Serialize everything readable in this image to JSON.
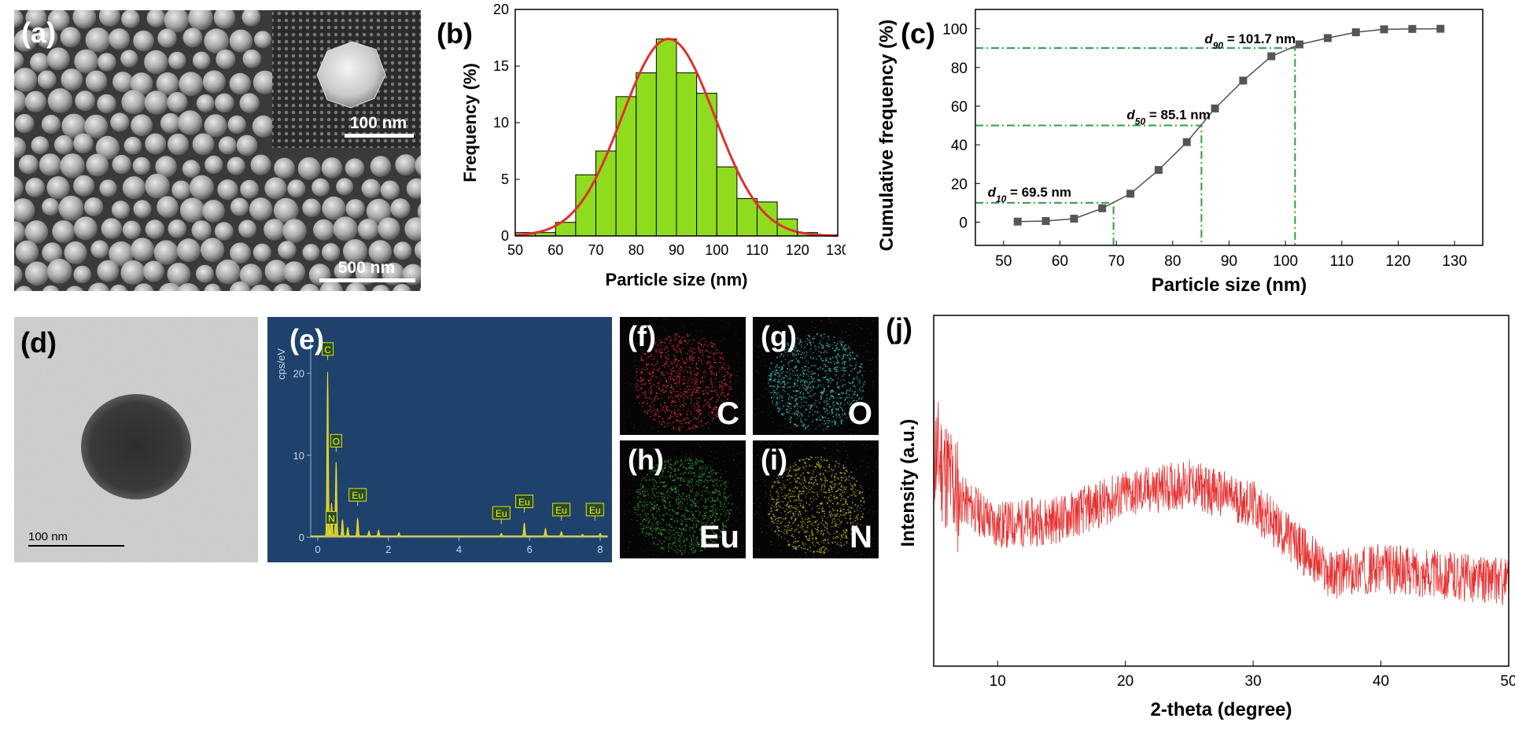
{
  "panels": {
    "a": {
      "label": "(a)",
      "inset_scale": "100 nm",
      "scale": "500 nm"
    },
    "b": {
      "label": "(b)"
    },
    "c": {
      "label": "(c)"
    },
    "d": {
      "label": "(d)",
      "scale": "100 nm"
    },
    "e": {
      "label": "(e)",
      "ylabel": "cps/eV"
    },
    "f": {
      "label": "(f)",
      "element": "C",
      "color": "#ff3030"
    },
    "g": {
      "label": "(g)",
      "element": "O",
      "color": "#3fd8d8"
    },
    "h": {
      "label": "(h)",
      "element": "Eu",
      "color": "#30c030"
    },
    "i": {
      "label": "(i)",
      "element": "N",
      "color": "#d8c820"
    },
    "j": {
      "label": "(j)"
    }
  },
  "chart_data": [
    {
      "id": "b",
      "type": "bar",
      "title": "",
      "xlabel": "Particle size (nm)",
      "ylabel": "Frequency (%)",
      "xlim": [
        50,
        130
      ],
      "ylim": [
        0,
        20
      ],
      "xticks": [
        50,
        60,
        70,
        80,
        90,
        100,
        110,
        120,
        130
      ],
      "yticks": [
        0,
        5,
        10,
        15,
        20
      ],
      "bin_width": 5,
      "bin_starts": [
        50,
        55,
        60,
        65,
        70,
        75,
        80,
        85,
        90,
        95,
        100,
        105,
        110,
        115,
        120,
        125
      ],
      "values": [
        0.3,
        0.3,
        1.2,
        5.4,
        7.5,
        12.3,
        14.4,
        17.4,
        14.4,
        12.6,
        6.1,
        3.3,
        3.0,
        1.5,
        0.3,
        0.1
      ],
      "fit": {
        "type": "gaussian",
        "mean": 88,
        "sigma": 11.5,
        "peak": 17.4,
        "color": "#e03030"
      },
      "bar_color": "#8fdc1e"
    },
    {
      "id": "c",
      "type": "line",
      "title": "",
      "xlabel": "Particle size (nm)",
      "ylabel": "Cumulative frequency (%)",
      "xlim": [
        45,
        135
      ],
      "ylim": [
        -12,
        110
      ],
      "xticks": [
        50,
        60,
        70,
        80,
        90,
        100,
        110,
        120,
        130
      ],
      "yticks": [
        0,
        20,
        40,
        60,
        80,
        100
      ],
      "x": [
        52.5,
        57.5,
        62.5,
        67.5,
        72.5,
        77.5,
        82.5,
        87.5,
        92.5,
        97.5,
        102.5,
        107.5,
        112.5,
        117.5,
        122.5,
        127.5
      ],
      "y": [
        0.3,
        0.6,
        1.8,
        7.2,
        14.7,
        27.0,
        41.4,
        58.8,
        73.2,
        85.8,
        91.9,
        95.2,
        98.2,
        99.7,
        99.9,
        100
      ],
      "markers": [
        {
          "name": "d10",
          "sub": "10",
          "value": 69.5,
          "percent": 10,
          "label": " = 69.5 nm"
        },
        {
          "name": "d50",
          "sub": "50",
          "value": 85.1,
          "percent": 50,
          "label": " = 85.1 nm"
        },
        {
          "name": "d90",
          "sub": "90",
          "value": 101.7,
          "percent": 90,
          "label": " = 101.7 nm"
        }
      ],
      "line_color": "#505050",
      "guide_color": "#2aa040"
    },
    {
      "id": "e",
      "type": "area",
      "title": "",
      "xlabel": "",
      "ylabel": "cps/eV",
      "xlim": [
        -0.2,
        8.2
      ],
      "ylim": [
        0,
        24
      ],
      "xticks": [
        0,
        2,
        4,
        6,
        8
      ],
      "yticks": [
        0,
        10,
        20
      ],
      "peaks": [
        {
          "x": 0.28,
          "y": 20.0
        },
        {
          "x": 0.39,
          "y": 4.0
        },
        {
          "x": 0.52,
          "y": 9.0
        },
        {
          "x": 0.7,
          "y": 2.0
        },
        {
          "x": 0.85,
          "y": 1.0
        },
        {
          "x": 1.13,
          "y": 2.2
        },
        {
          "x": 1.45,
          "y": 0.6
        },
        {
          "x": 1.72,
          "y": 0.7
        },
        {
          "x": 2.3,
          "y": 0.4
        },
        {
          "x": 5.2,
          "y": 0.3
        },
        {
          "x": 5.85,
          "y": 1.6
        },
        {
          "x": 6.45,
          "y": 0.9
        },
        {
          "x": 6.9,
          "y": 0.5
        },
        {
          "x": 7.5,
          "y": 0.2
        },
        {
          "x": 8.0,
          "y": 0.3
        }
      ],
      "element_tags": [
        {
          "label": "C",
          "x": 0.28,
          "y": 22.2
        },
        {
          "label": "O",
          "x": 0.52,
          "y": 11.0
        },
        {
          "label": "N",
          "x": 0.39,
          "y": 1.6
        },
        {
          "label": "Eu",
          "x": 1.13,
          "y": 4.4
        },
        {
          "label": "Eu",
          "x": 5.2,
          "y": 2.2
        },
        {
          "label": "Eu",
          "x": 5.85,
          "y": 3.6
        },
        {
          "label": "Eu",
          "x": 6.9,
          "y": 2.6
        },
        {
          "label": "Eu",
          "x": 7.85,
          "y": 2.6
        }
      ],
      "line_color": "#f0e020",
      "background": "#1f426d"
    },
    {
      "id": "j",
      "type": "line",
      "title": "",
      "xlabel": "2-theta (degree)",
      "ylabel": "Intensity (a.u.)",
      "xlim": [
        5,
        50
      ],
      "ylim": [
        0,
        1
      ],
      "xticks": [
        10,
        20,
        30,
        40,
        50
      ],
      "baseline": [
        [
          5,
          0.62
        ],
        [
          7,
          0.48
        ],
        [
          10,
          0.4
        ],
        [
          15,
          0.42
        ],
        [
          20,
          0.49
        ],
        [
          25,
          0.52
        ],
        [
          30,
          0.46
        ],
        [
          33,
          0.36
        ],
        [
          36,
          0.26
        ],
        [
          40,
          0.28
        ],
        [
          45,
          0.26
        ],
        [
          50,
          0.24
        ]
      ],
      "noise_amplitude": 0.07,
      "line_color": "#e83030"
    }
  ]
}
